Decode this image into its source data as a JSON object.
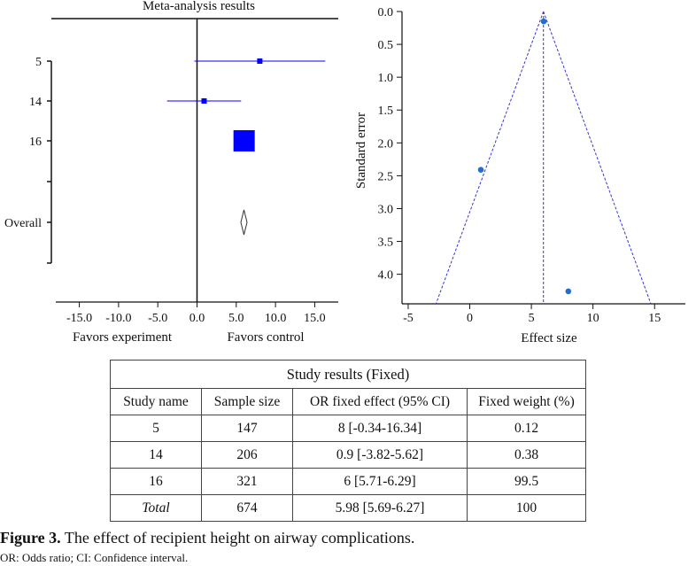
{
  "chart_data": [
    {
      "type": "forest",
      "title": "Meta-analysis results",
      "xlim": [
        -18,
        18
      ],
      "xticks": [
        -15,
        -10,
        -5,
        0,
        5,
        10,
        15
      ],
      "xtick_labels": [
        "-15.0",
        "-10.0",
        "-5.0",
        "0.0",
        "5.0",
        "10.0",
        "15.0"
      ],
      "xlabel_left": "Favors experiment",
      "xlabel_right": "Favors control",
      "studies": [
        {
          "label": "5",
          "estimate": 8,
          "ci_low": -0.34,
          "ci_high": 16.34,
          "weight": 0.12
        },
        {
          "label": "14",
          "estimate": 0.9,
          "ci_low": -3.82,
          "ci_high": 5.62,
          "weight": 0.38
        },
        {
          "label": "16",
          "estimate": 6,
          "ci_low": 5.71,
          "ci_high": 6.29,
          "weight": 99.5
        }
      ],
      "overall": {
        "label": "Overall",
        "estimate": 5.98,
        "ci_low": 5.69,
        "ci_high": 6.27
      },
      "color": "#0000ff"
    },
    {
      "type": "scatter",
      "subtype": "funnel",
      "xlabel": "Effect size",
      "ylabel": "Standard error",
      "xlim": [
        -5.5,
        17.5
      ],
      "ylim": [
        4.45,
        0
      ],
      "xticks": [
        -5,
        0,
        5,
        10,
        15
      ],
      "yticks": [
        0.0,
        0.5,
        1.0,
        1.5,
        2.0,
        2.5,
        3.0,
        3.5,
        4.0
      ],
      "ytick_labels": [
        "0.0",
        "0.5",
        "1.0",
        "1.5",
        "2.0",
        "2.5",
        "3.0",
        "3.5",
        "4.0"
      ],
      "center": 5.98,
      "points": [
        {
          "x": 6,
          "y": 0.15
        },
        {
          "x": 0.9,
          "y": 2.41
        },
        {
          "x": 8,
          "y": 4.26
        }
      ],
      "color": "#1f6fd0",
      "line_color": "#3333dd"
    }
  ],
  "table": {
    "title": "Study results (Fixed)",
    "headers": [
      "Study name",
      "Sample size",
      "OR fixed effect (95% CI)",
      "Fixed weight (%)"
    ],
    "rows": [
      [
        "5",
        "147",
        "8 [-0.34-16.34]",
        "0.12"
      ],
      [
        "14",
        "206",
        "0.9 [-3.82-5.62]",
        "0.38"
      ],
      [
        "16",
        "321",
        "6 [5.71-6.29]",
        "99.5"
      ]
    ],
    "total": [
      "Total",
      "674",
      "5.98 [5.69-6.27]",
      "100"
    ]
  },
  "caption": {
    "label": "Figure 3.",
    "text": " The effect of recipient height on airway complications.",
    "abbreviations": "OR: Odds ratio; CI: Confidence interval."
  }
}
